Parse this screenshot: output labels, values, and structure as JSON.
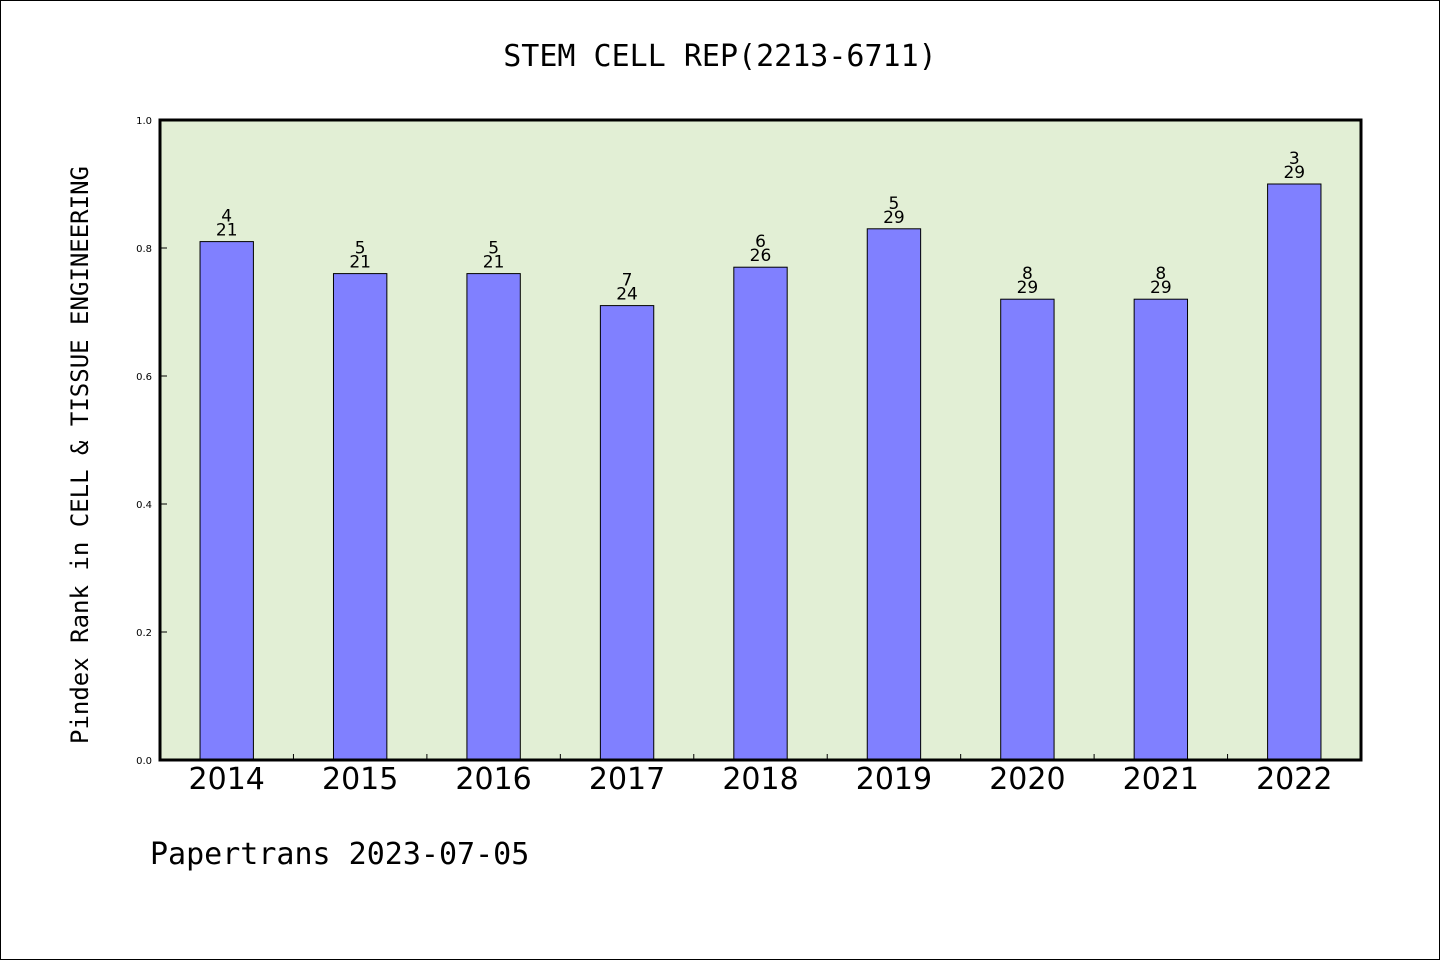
{
  "chart_data": {
    "type": "bar",
    "title": "STEM CELL REP(2213-6711)",
    "ylabel": "Pindex Rank in CELL & TISSUE ENGINEERING",
    "xlabel": "",
    "categories": [
      "2014",
      "2015",
      "2016",
      "2017",
      "2018",
      "2019",
      "2020",
      "2021",
      "2022"
    ],
    "values": [
      0.81,
      0.76,
      0.76,
      0.71,
      0.77,
      0.83,
      0.72,
      0.72,
      0.9
    ],
    "rank": [
      "4",
      "5",
      "5",
      "7",
      "6",
      "5",
      "8",
      "8",
      "3"
    ],
    "total": [
      "21",
      "21",
      "21",
      "24",
      "26",
      "29",
      "29",
      "29",
      "29"
    ],
    "ylim": [
      0,
      1.0
    ],
    "yticks": [
      "0.0",
      "0.2",
      "0.4",
      "0.6",
      "0.8",
      "1.0"
    ],
    "grid": false,
    "colors": {
      "bar": "#8080ff",
      "plot_background": "#e2efd5",
      "axis": "#000000"
    }
  },
  "footer": "Papertrans 2023-07-05"
}
